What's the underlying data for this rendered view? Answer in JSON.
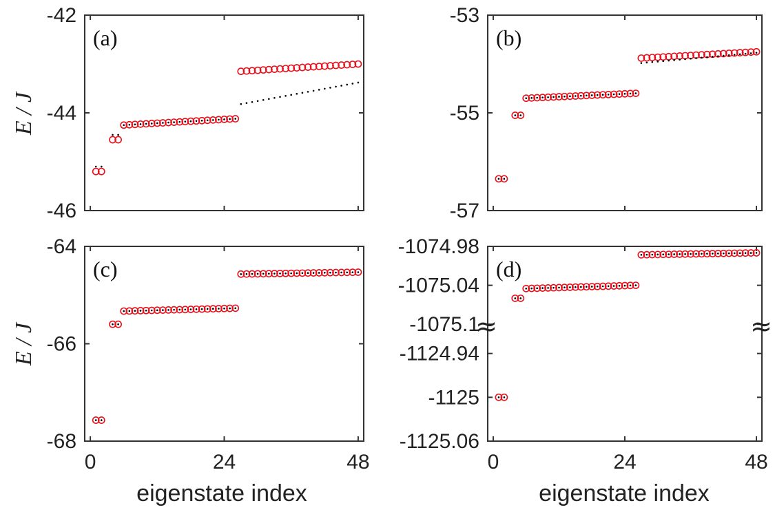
{
  "figure": {
    "ylabel_top": "E / J",
    "ylabel_bottom": "E / J",
    "xlabel_left": "eigenstate index",
    "xlabel_right": "eigenstate index",
    "break_symbol": "≈",
    "colors": {
      "circle": "#e8101a",
      "dot": "#000000",
      "axis": "#333333"
    }
  },
  "chart_data": [
    {
      "type": "scatter",
      "panel_label": "(a)",
      "xlim": [
        -1,
        49
      ],
      "ylim": [
        -46,
        -42
      ],
      "xticks": [
        0,
        24,
        48
      ],
      "xtick_labels": [
        "",
        "",
        ""
      ],
      "yticks": [
        -46,
        -44,
        -42
      ],
      "ytick_labels": [
        "-46",
        "-44",
        "-42"
      ],
      "series": [
        {
          "marker": "circle",
          "groups": [
            {
              "start": 1,
              "end": 2,
              "y0": -45.2,
              "y1": -45.2
            },
            {
              "start": 4,
              "end": 5,
              "y0": -44.55,
              "y1": -44.55
            },
            {
              "start": 6,
              "end": 26,
              "y0": -44.25,
              "y1": -44.12
            },
            {
              "start": 27,
              "end": 48,
              "y0": -43.15,
              "y1": -43.0
            }
          ]
        },
        {
          "marker": "dot",
          "groups": [
            {
              "start": 1,
              "end": 2,
              "y0": -45.1,
              "y1": -45.1
            },
            {
              "start": 4,
              "end": 5,
              "y0": -44.45,
              "y1": -44.45
            },
            {
              "start": 6,
              "end": 26,
              "y0": -44.25,
              "y1": -44.12
            },
            {
              "start": 27,
              "end": 48,
              "y0": -43.82,
              "y1": -43.38
            }
          ]
        }
      ]
    },
    {
      "type": "scatter",
      "panel_label": "(b)",
      "xlim": [
        -1,
        49
      ],
      "ylim": [
        -57,
        -53
      ],
      "xticks": [
        0,
        24,
        48
      ],
      "xtick_labels": [
        "",
        "",
        ""
      ],
      "yticks": [
        -57,
        -55,
        -53
      ],
      "ytick_labels": [
        "-57",
        "-55",
        "-53"
      ],
      "series": [
        {
          "marker": "circle",
          "groups": [
            {
              "start": 1,
              "end": 2,
              "y0": -56.35,
              "y1": -56.35
            },
            {
              "start": 4,
              "end": 5,
              "y0": -55.05,
              "y1": -55.05
            },
            {
              "start": 6,
              "end": 26,
              "y0": -54.7,
              "y1": -54.6
            },
            {
              "start": 27,
              "end": 48,
              "y0": -53.88,
              "y1": -53.75
            }
          ]
        },
        {
          "marker": "dot",
          "groups": [
            {
              "start": 1,
              "end": 2,
              "y0": -56.35,
              "y1": -56.35
            },
            {
              "start": 4,
              "end": 5,
              "y0": -55.05,
              "y1": -55.05
            },
            {
              "start": 6,
              "end": 26,
              "y0": -54.7,
              "y1": -54.6
            },
            {
              "start": 27,
              "end": 48,
              "y0": -53.98,
              "y1": -53.77
            }
          ]
        }
      ]
    },
    {
      "type": "scatter",
      "panel_label": "(c)",
      "xlim": [
        -1,
        49
      ],
      "ylim": [
        -68,
        -64
      ],
      "xticks": [
        0,
        24,
        48
      ],
      "xtick_labels": [
        "0",
        "24",
        "48"
      ],
      "yticks": [
        -68,
        -66,
        -64
      ],
      "ytick_labels": [
        "-68",
        "-66",
        "-64"
      ],
      "series": [
        {
          "marker": "circle",
          "groups": [
            {
              "start": 1,
              "end": 2,
              "y0": -67.57,
              "y1": -67.57
            },
            {
              "start": 4,
              "end": 5,
              "y0": -65.6,
              "y1": -65.6
            },
            {
              "start": 6,
              "end": 26,
              "y0": -65.33,
              "y1": -65.27
            },
            {
              "start": 27,
              "end": 48,
              "y0": -64.57,
              "y1": -64.53
            }
          ]
        },
        {
          "marker": "dot",
          "groups": [
            {
              "start": 1,
              "end": 2,
              "y0": -67.57,
              "y1": -67.57
            },
            {
              "start": 4,
              "end": 5,
              "y0": -65.6,
              "y1": -65.6
            },
            {
              "start": 6,
              "end": 26,
              "y0": -65.33,
              "y1": -65.27
            },
            {
              "start": 27,
              "end": 48,
              "y0": -64.57,
              "y1": -64.53
            }
          ]
        }
      ]
    },
    {
      "type": "scatter",
      "panel_label": "(d)",
      "broken_axis": true,
      "xlim": [
        -1,
        49
      ],
      "xticks": [
        0,
        24,
        48
      ],
      "xtick_labels": [
        "0",
        "24",
        "48"
      ],
      "upper_ylim": [
        -1075.1,
        -1074.98
      ],
      "lower_ylim": [
        -1125.06,
        -1124.9
      ],
      "yticks": [
        -1125.06,
        -1125,
        -1124.94,
        -1075.1,
        -1075.04,
        -1074.98
      ],
      "ytick_labels": [
        "-1125.06",
        "-1125",
        "-1124.94",
        "-1075.1",
        "-1075.04",
        "-1074.98"
      ],
      "series": [
        {
          "marker": "circle",
          "groups": [
            {
              "start": 1,
              "end": 2,
              "y0": -1125,
              "y1": -1125
            },
            {
              "start": 4,
              "end": 5,
              "y0": -1075.06,
              "y1": -1075.06
            },
            {
              "start": 6,
              "end": 26,
              "y0": -1075.045,
              "y1": -1075.04
            },
            {
              "start": 27,
              "end": 48,
              "y0": -1074.993,
              "y1": -1074.99
            }
          ]
        },
        {
          "marker": "dot",
          "groups": [
            {
              "start": 1,
              "end": 2,
              "y0": -1125,
              "y1": -1125
            },
            {
              "start": 4,
              "end": 5,
              "y0": -1075.06,
              "y1": -1075.06
            },
            {
              "start": 6,
              "end": 26,
              "y0": -1075.045,
              "y1": -1075.04
            },
            {
              "start": 27,
              "end": 48,
              "y0": -1074.993,
              "y1": -1074.99
            }
          ]
        }
      ]
    }
  ]
}
